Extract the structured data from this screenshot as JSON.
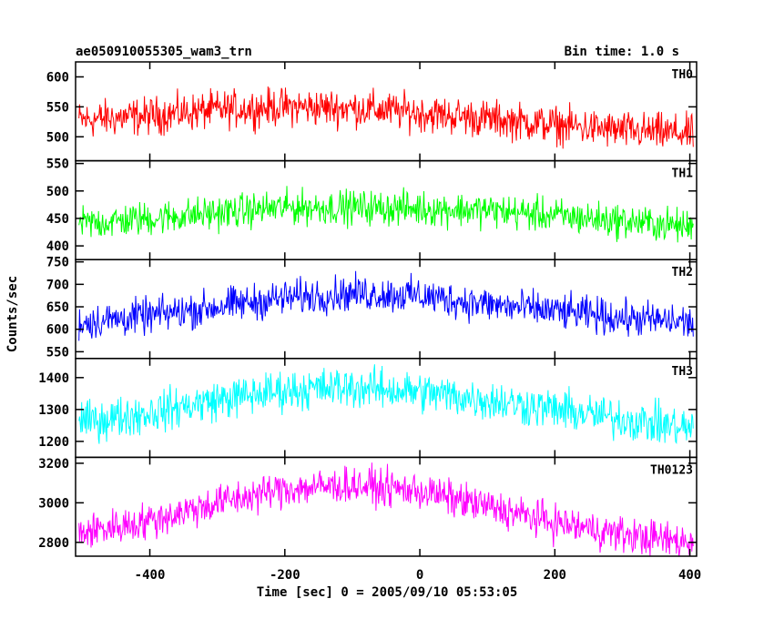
{
  "chart_data": {
    "type": "line",
    "title": "ae050910055305_wam3_trn",
    "subtitle": "Bin time: 1.0 s",
    "xlabel": "Time [sec] 0 = 2005/09/10 05:53:05",
    "ylabel": "Counts/sec",
    "xlim": [
      -510,
      410
    ],
    "xticks": [
      -400,
      -200,
      0,
      200,
      400
    ],
    "grid": false,
    "series": [
      {
        "name": "TH0",
        "color": "#ff0000",
        "ylim": [
          460,
          625
        ],
        "yticks": [
          500,
          550,
          600
        ],
        "x": [
          -500,
          -400,
          -300,
          -200,
          -100,
          0,
          100,
          200,
          300,
          400
        ],
        "values": [
          528,
          535,
          545,
          550,
          548,
          540,
          530,
          520,
          510,
          505
        ],
        "noise": 22
      },
      {
        "name": "TH1",
        "color": "#00ff00",
        "ylim": [
          375,
          555
        ],
        "yticks": [
          400,
          450,
          500,
          550
        ],
        "x": [
          -500,
          -400,
          -300,
          -200,
          -100,
          0,
          100,
          200,
          300,
          400
        ],
        "values": [
          440,
          450,
          460,
          470,
          470,
          468,
          465,
          455,
          445,
          435
        ],
        "noise": 22
      },
      {
        "name": "TH2",
        "color": "#0000ff",
        "ylim": [
          535,
          755
        ],
        "yticks": [
          550,
          600,
          650,
          700,
          750
        ],
        "x": [
          -500,
          -400,
          -300,
          -200,
          -100,
          0,
          100,
          200,
          300,
          400
        ],
        "values": [
          615,
          630,
          650,
          670,
          680,
          675,
          655,
          640,
          625,
          615
        ],
        "noise": 28
      },
      {
        "name": "TH3",
        "color": "#00ffff",
        "ylim": [
          1150,
          1460
        ],
        "yticks": [
          1200,
          1300,
          1400
        ],
        "x": [
          -500,
          -400,
          -300,
          -200,
          -100,
          0,
          100,
          200,
          300,
          400
        ],
        "values": [
          1260,
          1290,
          1330,
          1360,
          1370,
          1355,
          1330,
          1300,
          1270,
          1240
        ],
        "noise": 45
      },
      {
        "name": "TH0123",
        "color": "#ff00ff",
        "ylim": [
          2730,
          3230
        ],
        "yticks": [
          2800,
          3000,
          3200
        ],
        "x": [
          -500,
          -400,
          -300,
          -200,
          -100,
          0,
          100,
          200,
          300,
          400
        ],
        "values": [
          2850,
          2910,
          3000,
          3070,
          3090,
          3060,
          2980,
          2900,
          2840,
          2800
        ],
        "noise": 65
      }
    ]
  }
}
